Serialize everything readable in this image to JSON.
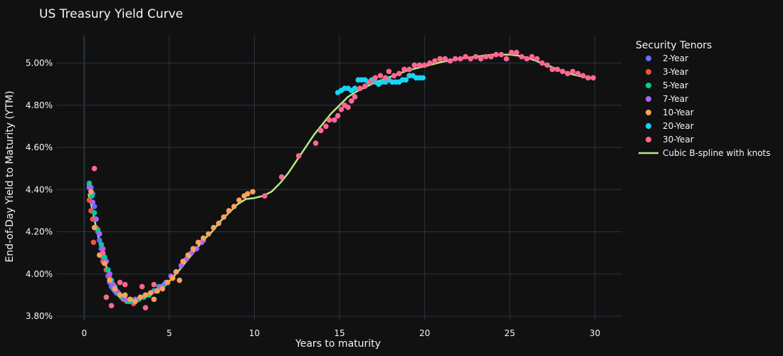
{
  "chart_data": {
    "type": "scatter",
    "title": "US Treasury Yield Curve",
    "xlabel": "Years to maturity",
    "ylabel": "End-of-Day Yield to Maturity (YTM)",
    "xlim": [
      -1.6,
      31.6
    ],
    "ylim": [
      3.78,
      5.13
    ],
    "x_ticks": [
      0,
      5,
      10,
      15,
      20,
      25,
      30
    ],
    "x_tick_labels": [
      "0",
      "5",
      "10",
      "15",
      "20",
      "25",
      "30"
    ],
    "y_ticks": [
      3.8,
      4.0,
      4.2,
      4.4,
      4.6,
      4.8,
      5.0
    ],
    "y_tick_labels": [
      "3.80%",
      "4.00%",
      "4.20%",
      "4.40%",
      "4.60%",
      "4.80%",
      "5.00%"
    ],
    "grid": true,
    "legend_position": "right",
    "legend_title": "Security Tenors",
    "series": [
      {
        "name": "2-Year",
        "kind": "points",
        "color": "#636efa",
        "points": [
          [
            0.3,
            4.42
          ],
          [
            0.4,
            4.41
          ],
          [
            0.5,
            4.38
          ],
          [
            0.6,
            4.32
          ],
          [
            0.7,
            4.26
          ],
          [
            0.8,
            4.2
          ],
          [
            0.9,
            4.16
          ],
          [
            1.0,
            4.12
          ],
          [
            1.1,
            4.08
          ],
          [
            1.2,
            4.05
          ],
          [
            1.3,
            4.02
          ],
          [
            1.4,
            3.99
          ],
          [
            1.5,
            3.96
          ],
          [
            1.6,
            3.94
          ],
          [
            1.7,
            3.93
          ],
          [
            1.8,
            3.92
          ],
          [
            1.9,
            3.91
          ]
        ]
      },
      {
        "name": "3-Year",
        "kind": "points",
        "color": "#ef553b",
        "points": [
          [
            0.3,
            4.35
          ],
          [
            0.4,
            4.3
          ],
          [
            0.5,
            4.26
          ],
          [
            0.55,
            4.15
          ],
          [
            0.7,
            4.22
          ],
          [
            0.9,
            4.09
          ],
          [
            1.1,
            4.06
          ],
          [
            1.3,
            4.02
          ],
          [
            1.5,
            3.98
          ],
          [
            1.7,
            3.95
          ],
          [
            1.9,
            3.92
          ],
          [
            2.1,
            3.9
          ],
          [
            2.3,
            3.88
          ],
          [
            2.5,
            3.87
          ],
          [
            2.7,
            3.87
          ],
          [
            2.9,
            3.86
          ]
        ]
      },
      {
        "name": "5-Year",
        "kind": "points",
        "color": "#00cc96",
        "points": [
          [
            0.3,
            4.43
          ],
          [
            0.45,
            4.37
          ],
          [
            0.6,
            4.29
          ],
          [
            0.8,
            4.21
          ],
          [
            1.0,
            4.14
          ],
          [
            1.2,
            4.08
          ],
          [
            1.4,
            4.02
          ],
          [
            1.6,
            3.97
          ],
          [
            1.8,
            3.94
          ],
          [
            2.0,
            3.91
          ],
          [
            2.2,
            3.89
          ],
          [
            2.4,
            3.88
          ],
          [
            2.6,
            3.87
          ],
          [
            2.9,
            3.87
          ],
          [
            3.2,
            3.88
          ],
          [
            3.5,
            3.89
          ],
          [
            3.8,
            3.9
          ],
          [
            4.1,
            3.92
          ],
          [
            4.4,
            3.94
          ],
          [
            4.7,
            3.95
          ],
          [
            4.9,
            3.96
          ]
        ]
      },
      {
        "name": "7-Year",
        "kind": "points",
        "color": "#ab63fa",
        "points": [
          [
            0.3,
            4.41
          ],
          [
            0.5,
            4.34
          ],
          [
            0.7,
            4.26
          ],
          [
            0.9,
            4.19
          ],
          [
            1.1,
            4.12
          ],
          [
            1.3,
            4.06
          ],
          [
            1.5,
            4.0
          ],
          [
            1.7,
            3.95
          ],
          [
            1.9,
            3.92
          ],
          [
            2.1,
            3.9
          ],
          [
            2.4,
            3.88
          ],
          [
            2.7,
            3.88
          ],
          [
            3.0,
            3.88
          ],
          [
            3.3,
            3.89
          ],
          [
            3.6,
            3.9
          ],
          [
            3.9,
            3.91
          ],
          [
            4.2,
            3.92
          ],
          [
            4.5,
            3.94
          ],
          [
            4.8,
            3.96
          ],
          [
            5.1,
            3.99
          ],
          [
            5.4,
            4.01
          ],
          [
            5.7,
            4.04
          ],
          [
            6.0,
            4.07
          ],
          [
            6.3,
            4.1
          ],
          [
            6.6,
            4.12
          ],
          [
            6.9,
            4.15
          ],
          [
            7.0,
            4.16
          ]
        ]
      },
      {
        "name": "10-Year",
        "kind": "points",
        "color": "#ffa15a",
        "points": [
          [
            0.4,
            4.39
          ],
          [
            0.6,
            4.22
          ],
          [
            0.9,
            4.09
          ],
          [
            1.2,
            4.05
          ],
          [
            1.5,
            3.97
          ],
          [
            1.8,
            3.93
          ],
          [
            2.1,
            3.9
          ],
          [
            2.4,
            3.9
          ],
          [
            2.7,
            3.88
          ],
          [
            3.0,
            3.87
          ],
          [
            3.3,
            3.89
          ],
          [
            3.6,
            3.9
          ],
          [
            3.9,
            3.91
          ],
          [
            4.1,
            3.88
          ],
          [
            4.3,
            3.92
          ],
          [
            4.6,
            3.93
          ],
          [
            4.9,
            3.96
          ],
          [
            5.2,
            3.98
          ],
          [
            5.4,
            4.01
          ],
          [
            5.6,
            3.97
          ],
          [
            5.8,
            4.06
          ],
          [
            6.1,
            4.09
          ],
          [
            6.4,
            4.12
          ],
          [
            6.7,
            4.15
          ],
          [
            7.0,
            4.17
          ],
          [
            7.3,
            4.19
          ],
          [
            7.6,
            4.22
          ],
          [
            7.9,
            4.24
          ],
          [
            8.2,
            4.27
          ],
          [
            8.5,
            4.3
          ],
          [
            8.8,
            4.32
          ],
          [
            9.1,
            4.35
          ],
          [
            9.4,
            4.37
          ],
          [
            9.6,
            4.38
          ],
          [
            9.9,
            4.39
          ]
        ]
      },
      {
        "name": "20-Year",
        "kind": "points",
        "color": "#19d3f3",
        "points": [
          [
            14.9,
            4.86
          ],
          [
            15.1,
            4.87
          ],
          [
            15.3,
            4.88
          ],
          [
            15.5,
            4.88
          ],
          [
            15.7,
            4.87
          ],
          [
            15.9,
            4.88
          ],
          [
            16.1,
            4.92
          ],
          [
            16.3,
            4.92
          ],
          [
            16.5,
            4.92
          ],
          [
            16.7,
            4.91
          ],
          [
            16.9,
            4.92
          ],
          [
            17.1,
            4.91
          ],
          [
            17.3,
            4.9
          ],
          [
            17.5,
            4.91
          ],
          [
            17.7,
            4.91
          ],
          [
            17.9,
            4.92
          ],
          [
            18.1,
            4.91
          ],
          [
            18.3,
            4.91
          ],
          [
            18.5,
            4.91
          ],
          [
            18.7,
            4.92
          ],
          [
            18.9,
            4.92
          ],
          [
            19.1,
            4.94
          ],
          [
            19.3,
            4.94
          ],
          [
            19.5,
            4.93
          ],
          [
            19.7,
            4.93
          ],
          [
            19.9,
            4.93
          ]
        ]
      },
      {
        "name": "30-Year",
        "kind": "points",
        "color": "#ff6692",
        "points": [
          [
            0.6,
            4.5
          ],
          [
            1.1,
            4.1
          ],
          [
            1.3,
            3.89
          ],
          [
            1.6,
            3.85
          ],
          [
            2.1,
            3.96
          ],
          [
            2.4,
            3.95
          ],
          [
            3.4,
            3.94
          ],
          [
            3.6,
            3.84
          ],
          [
            4.1,
            3.95
          ],
          [
            10.6,
            4.37
          ],
          [
            11.6,
            4.46
          ],
          [
            12.6,
            4.56
          ],
          [
            13.6,
            4.62
          ],
          [
            13.9,
            4.68
          ],
          [
            14.2,
            4.7
          ],
          [
            14.4,
            4.73
          ],
          [
            14.7,
            4.73
          ],
          [
            14.9,
            4.75
          ],
          [
            15.1,
            4.78
          ],
          [
            15.3,
            4.8
          ],
          [
            15.5,
            4.79
          ],
          [
            15.7,
            4.82
          ],
          [
            15.9,
            4.84
          ],
          [
            16.2,
            4.88
          ],
          [
            16.5,
            4.89
          ],
          [
            16.8,
            4.91
          ],
          [
            17.1,
            4.93
          ],
          [
            17.4,
            4.94
          ],
          [
            17.7,
            4.93
          ],
          [
            17.9,
            4.96
          ],
          [
            18.2,
            4.94
          ],
          [
            18.5,
            4.95
          ],
          [
            18.8,
            4.97
          ],
          [
            19.1,
            4.97
          ],
          [
            19.4,
            4.99
          ],
          [
            19.7,
            4.99
          ],
          [
            20.0,
            4.99
          ],
          [
            20.3,
            5.0
          ],
          [
            20.6,
            5.01
          ],
          [
            20.9,
            5.02
          ],
          [
            21.2,
            5.02
          ],
          [
            21.5,
            5.01
          ],
          [
            21.8,
            5.02
          ],
          [
            22.1,
            5.02
          ],
          [
            22.4,
            5.03
          ],
          [
            22.7,
            5.02
          ],
          [
            23.0,
            5.03
          ],
          [
            23.3,
            5.02
          ],
          [
            23.6,
            5.03
          ],
          [
            23.9,
            5.03
          ],
          [
            24.2,
            5.04
          ],
          [
            24.5,
            5.04
          ],
          [
            24.8,
            5.02
          ],
          [
            25.1,
            5.05
          ],
          [
            25.4,
            5.05
          ],
          [
            25.7,
            5.03
          ],
          [
            26.0,
            5.02
          ],
          [
            26.3,
            5.03
          ],
          [
            26.6,
            5.02
          ],
          [
            26.9,
            5.0
          ],
          [
            27.2,
            4.99
          ],
          [
            27.5,
            4.97
          ],
          [
            27.8,
            4.97
          ],
          [
            28.1,
            4.96
          ],
          [
            28.4,
            4.95
          ],
          [
            28.7,
            4.96
          ],
          [
            29.0,
            4.95
          ],
          [
            29.3,
            4.94
          ],
          [
            29.6,
            4.93
          ],
          [
            29.9,
            4.93
          ]
        ]
      },
      {
        "name": "Cubic B-spline with knots",
        "kind": "line",
        "color": "#b6e880",
        "points": [
          [
            0.25,
            4.38
          ],
          [
            0.5,
            4.3
          ],
          [
            0.75,
            4.2
          ],
          [
            1.0,
            4.13
          ],
          [
            1.25,
            4.05
          ],
          [
            1.5,
            3.98
          ],
          [
            1.75,
            3.93
          ],
          [
            2.0,
            3.9
          ],
          [
            2.25,
            3.88
          ],
          [
            2.5,
            3.87
          ],
          [
            2.75,
            3.87
          ],
          [
            3.0,
            3.875
          ],
          [
            3.5,
            3.89
          ],
          [
            4.0,
            3.91
          ],
          [
            4.5,
            3.935
          ],
          [
            5.0,
            3.965
          ],
          [
            5.5,
            4.01
          ],
          [
            6.0,
            4.06
          ],
          [
            6.5,
            4.11
          ],
          [
            7.0,
            4.16
          ],
          [
            7.5,
            4.2
          ],
          [
            8.0,
            4.25
          ],
          [
            8.5,
            4.29
          ],
          [
            9.0,
            4.33
          ],
          [
            9.5,
            4.355
          ],
          [
            10.0,
            4.36
          ],
          [
            10.5,
            4.37
          ],
          [
            11.0,
            4.39
          ],
          [
            11.5,
            4.43
          ],
          [
            12.0,
            4.48
          ],
          [
            12.5,
            4.54
          ],
          [
            13.0,
            4.6
          ],
          [
            13.5,
            4.66
          ],
          [
            14.0,
            4.71
          ],
          [
            14.5,
            4.76
          ],
          [
            15.0,
            4.8
          ],
          [
            15.5,
            4.84
          ],
          [
            16.0,
            4.865
          ],
          [
            16.5,
            4.885
          ],
          [
            17.0,
            4.905
          ],
          [
            17.5,
            4.92
          ],
          [
            18.0,
            4.935
          ],
          [
            18.5,
            4.95
          ],
          [
            19.0,
            4.965
          ],
          [
            19.5,
            4.975
          ],
          [
            20.0,
            4.985
          ],
          [
            21.0,
            5.005
          ],
          [
            22.0,
            5.02
          ],
          [
            23.0,
            5.03
          ],
          [
            24.0,
            5.04
          ],
          [
            25.0,
            5.04
          ],
          [
            25.5,
            5.035
          ],
          [
            26.0,
            5.025
          ],
          [
            26.5,
            5.012
          ],
          [
            27.0,
            4.995
          ],
          [
            27.5,
            4.98
          ],
          [
            28.0,
            4.963
          ],
          [
            28.5,
            4.95
          ],
          [
            29.0,
            4.94
          ],
          [
            29.5,
            4.932
          ],
          [
            29.9,
            4.927
          ]
        ]
      }
    ]
  }
}
